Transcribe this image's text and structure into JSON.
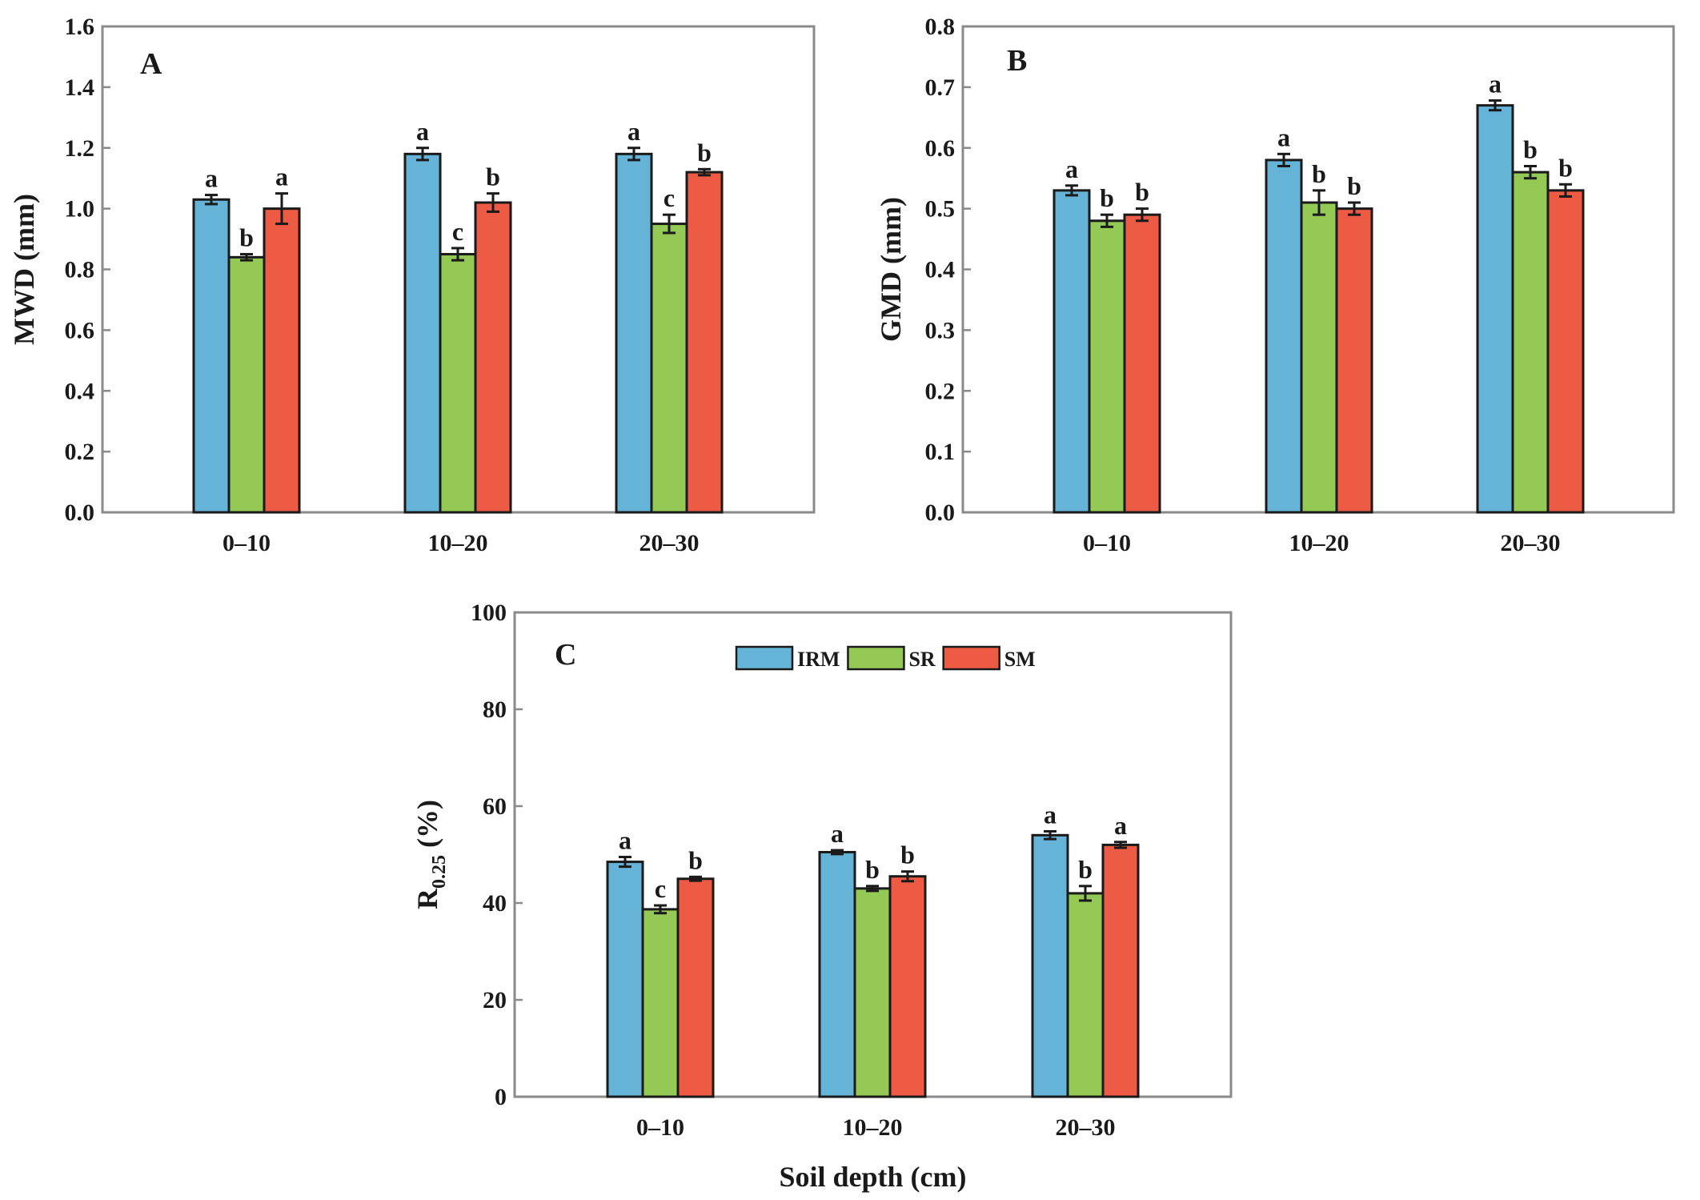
{
  "figure": {
    "colors": {
      "IRM": "#66b3d8",
      "SR": "#94c955",
      "SM": "#ee5b45"
    },
    "xlabel_c": "Soil depth (cm)"
  },
  "chart_data": [
    {
      "type": "bar",
      "panel": "A",
      "ylabel": "MWD (mm)",
      "ylim": [
        0,
        1.6
      ],
      "yticks": [
        "0.0",
        "0.2",
        "0.4",
        "0.6",
        "0.8",
        "1.0",
        "1.2",
        "1.4",
        "1.6"
      ],
      "categories": [
        "0–10",
        "10–20",
        "20–30"
      ],
      "series": [
        {
          "name": "IRM",
          "values": [
            1.03,
            1.18,
            1.18
          ],
          "errors": [
            0.015,
            0.02,
            0.02
          ],
          "letters": [
            "a",
            "a",
            "a"
          ]
        },
        {
          "name": "SR",
          "values": [
            0.84,
            0.85,
            0.95
          ],
          "errors": [
            0.01,
            0.02,
            0.03
          ],
          "letters": [
            "b",
            "c",
            "c"
          ]
        },
        {
          "name": "SM",
          "values": [
            1.0,
            1.02,
            1.12
          ],
          "errors": [
            0.05,
            0.03,
            0.01
          ],
          "letters": [
            "a",
            "b",
            "b"
          ]
        }
      ]
    },
    {
      "type": "bar",
      "panel": "B",
      "ylabel": "GMD (mm)",
      "ylim": [
        0,
        0.8
      ],
      "yticks": [
        "0.0",
        "0.1",
        "0.2",
        "0.3",
        "0.4",
        "0.5",
        "0.6",
        "0.7",
        "0.8"
      ],
      "categories": [
        "0–10",
        "10–20",
        "20–30"
      ],
      "series": [
        {
          "name": "IRM",
          "values": [
            0.53,
            0.58,
            0.67
          ],
          "errors": [
            0.008,
            0.01,
            0.008
          ],
          "letters": [
            "a",
            "a",
            "a"
          ]
        },
        {
          "name": "SR",
          "values": [
            0.48,
            0.51,
            0.56
          ],
          "errors": [
            0.01,
            0.02,
            0.01
          ],
          "letters": [
            "b",
            "b",
            "b"
          ]
        },
        {
          "name": "SM",
          "values": [
            0.49,
            0.5,
            0.53
          ],
          "errors": [
            0.01,
            0.01,
            0.01
          ],
          "letters": [
            "b",
            "b",
            "b"
          ]
        }
      ]
    },
    {
      "type": "bar",
      "panel": "C",
      "ylabel": "R0.25 (%)",
      "ylabel_main": "R",
      "ylabel_sub": "0.25",
      "ylabel_rest": " (%)",
      "ylim": [
        0,
        100
      ],
      "yticks": [
        "0",
        "20",
        "40",
        "60",
        "80",
        "100"
      ],
      "categories": [
        "0–10",
        "10–20",
        "20–30"
      ],
      "legend": [
        "IRM",
        "SR",
        "SM"
      ],
      "xlabel": "Soil depth (cm)",
      "series": [
        {
          "name": "IRM",
          "values": [
            48.5,
            50.5,
            54.0
          ],
          "errors": [
            1.0,
            0.4,
            0.8
          ],
          "letters": [
            "a",
            "a",
            "a"
          ]
        },
        {
          "name": "SR",
          "values": [
            38.7,
            43.0,
            42.0
          ],
          "errors": [
            0.8,
            0.5,
            1.5
          ],
          "letters": [
            "c",
            "b",
            "b"
          ]
        },
        {
          "name": "SM",
          "values": [
            45.0,
            45.5,
            52.0
          ],
          "errors": [
            0.4,
            1.0,
            0.6
          ],
          "letters": [
            "b",
            "b",
            "a"
          ]
        }
      ]
    }
  ]
}
